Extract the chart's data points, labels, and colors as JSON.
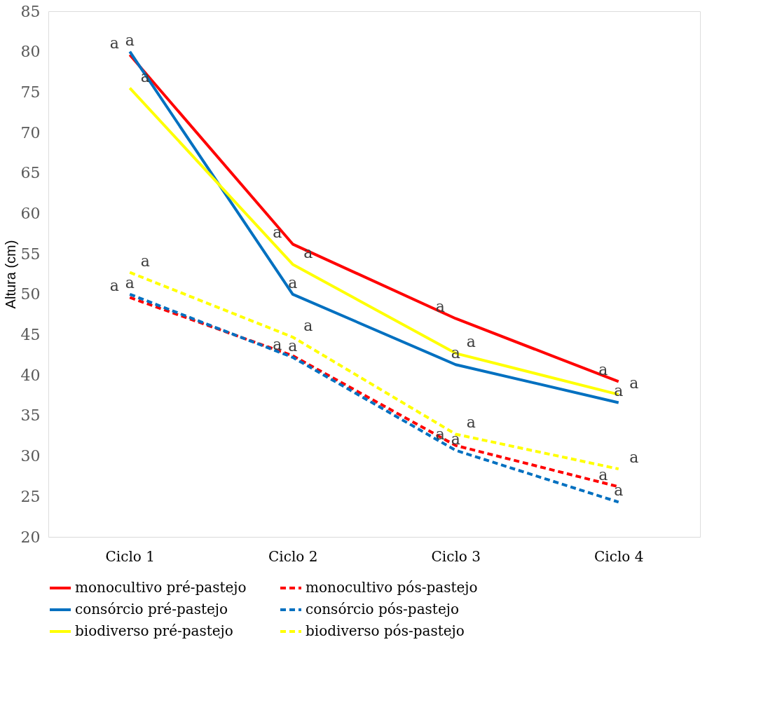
{
  "chart_data": {
    "type": "line",
    "ylabel": "Altura (cm)",
    "categories": [
      "Ciclo 1",
      "Ciclo 2",
      "Ciclo 3",
      "Ciclo 4"
    ],
    "ylim": [
      20,
      85
    ],
    "yticks": [
      20,
      25,
      30,
      35,
      40,
      45,
      50,
      55,
      60,
      65,
      70,
      75,
      80,
      85
    ],
    "grid": false,
    "legend": "bottom",
    "marker": "none",
    "series": [
      {
        "name": "monocultivo pré-pastejo",
        "color": "#ff0000",
        "line_style": "solid",
        "values": [
          79.6,
          56.2,
          47.0,
          39.2
        ],
        "value_labels": [
          "a",
          "a",
          "a",
          "a"
        ]
      },
      {
        "name": "monocultivo pós-pastejo",
        "color": "#ff0000",
        "line_style": "dashed",
        "values": [
          49.6,
          42.4,
          31.3,
          26.2
        ],
        "value_labels": [
          "a",
          "a",
          "a",
          "a"
        ]
      },
      {
        "name": "consórcio pré-pastejo",
        "color": "#0070c0",
        "line_style": "solid",
        "values": [
          80.0,
          50.0,
          41.3,
          36.6
        ],
        "value_labels": [
          "a",
          "a",
          "a",
          "a"
        ]
      },
      {
        "name": "consórcio pós-pastejo",
        "color": "#0070c0",
        "line_style": "dashed",
        "values": [
          50.0,
          42.2,
          30.7,
          24.3
        ],
        "value_labels": [
          "a",
          "a",
          "a",
          "a"
        ]
      },
      {
        "name": "biodiverso pré-pastejo",
        "color": "#ffff00",
        "line_style": "solid",
        "values": [
          75.5,
          53.7,
          42.7,
          37.6
        ],
        "value_labels": [
          "a",
          "a",
          "a",
          "a"
        ]
      },
      {
        "name": "biodiverso pós-pastejo",
        "color": "#ffff00",
        "line_style": "dashed",
        "values": [
          52.7,
          44.7,
          32.7,
          28.4
        ],
        "value_labels": [
          "a",
          "a",
          "a",
          "a"
        ]
      }
    ]
  }
}
